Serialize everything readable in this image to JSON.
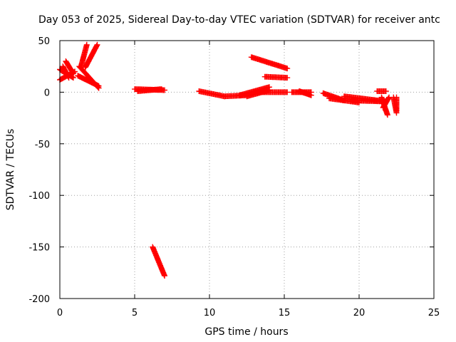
{
  "chart_data": {
    "type": "scatter",
    "title": "Day 053 of 2025, Sidereal Day-to-day VTEC variation (SDTVAR) for receiver antc",
    "xlabel": "GPS time / hours",
    "ylabel": "SDTVAR / TECUs",
    "xlim": [
      0,
      25
    ],
    "ylim": [
      -200,
      50
    ],
    "xticks": [
      0,
      5,
      10,
      15,
      20,
      25
    ],
    "yticks": [
      -200,
      -150,
      -100,
      -50,
      0,
      50
    ],
    "grid": true,
    "marker": "+",
    "series": [
      {
        "name": "SDTVAR",
        "color": "#ff0000",
        "segments": [
          {
            "x0": 0.0,
            "y0": 22,
            "x1": 0.9,
            "y1": 14
          },
          {
            "x0": 0.0,
            "y0": 12,
            "x1": 1.0,
            "y1": 20
          },
          {
            "x0": 0.2,
            "y0": 25,
            "x1": 0.6,
            "y1": 14
          },
          {
            "x0": 0.4,
            "y0": 30,
            "x1": 0.9,
            "y1": 18
          },
          {
            "x0": 1.3,
            "y0": 25,
            "x1": 2.6,
            "y1": 4
          },
          {
            "x0": 1.2,
            "y0": 16,
            "x1": 2.6,
            "y1": 6
          },
          {
            "x0": 1.4,
            "y0": 24,
            "x1": 1.8,
            "y1": 46
          },
          {
            "x0": 1.7,
            "y0": 24,
            "x1": 2.5,
            "y1": 46
          },
          {
            "x0": 5.0,
            "y0": 3,
            "x1": 7.0,
            "y1": 2
          },
          {
            "x0": 5.2,
            "y0": 1,
            "x1": 6.8,
            "y1": 3
          },
          {
            "x0": 9.3,
            "y0": 1,
            "x1": 11.0,
            "y1": -4
          },
          {
            "x0": 11.0,
            "y0": -4,
            "x1": 12.5,
            "y1": -3
          },
          {
            "x0": 12.0,
            "y0": -3,
            "x1": 14.0,
            "y1": 5
          },
          {
            "x0": 12.5,
            "y0": -4,
            "x1": 14.0,
            "y1": 2
          },
          {
            "x0": 13.0,
            "y0": 0,
            "x1": 15.2,
            "y1": 0
          },
          {
            "x0": 12.8,
            "y0": 34,
            "x1": 15.2,
            "y1": 23
          },
          {
            "x0": 13.7,
            "y0": 15,
            "x1": 15.2,
            "y1": 14
          },
          {
            "x0": 15.5,
            "y0": 0,
            "x1": 16.8,
            "y1": 0
          },
          {
            "x0": 16.0,
            "y0": 1,
            "x1": 16.8,
            "y1": -3
          },
          {
            "x0": 17.6,
            "y0": -1,
            "x1": 19.0,
            "y1": -8
          },
          {
            "x0": 18.0,
            "y0": -6,
            "x1": 20.0,
            "y1": -10
          },
          {
            "x0": 19.0,
            "y0": -4,
            "x1": 21.8,
            "y1": -9
          },
          {
            "x0": 19.5,
            "y0": -8,
            "x1": 21.8,
            "y1": -9
          },
          {
            "x0": 21.2,
            "y0": 1,
            "x1": 21.8,
            "y1": 1
          },
          {
            "x0": 21.5,
            "y0": -5,
            "x1": 21.9,
            "y1": -22
          },
          {
            "x0": 21.6,
            "y0": -15,
            "x1": 22.0,
            "y1": -5
          },
          {
            "x0": 22.3,
            "y0": -5,
            "x1": 22.5,
            "y1": -20
          },
          {
            "x0": 22.5,
            "y0": -5,
            "x1": 22.5,
            "y1": -18
          },
          {
            "x0": 6.2,
            "y0": -150,
            "x1": 7.0,
            "y1": -178
          }
        ]
      }
    ]
  }
}
